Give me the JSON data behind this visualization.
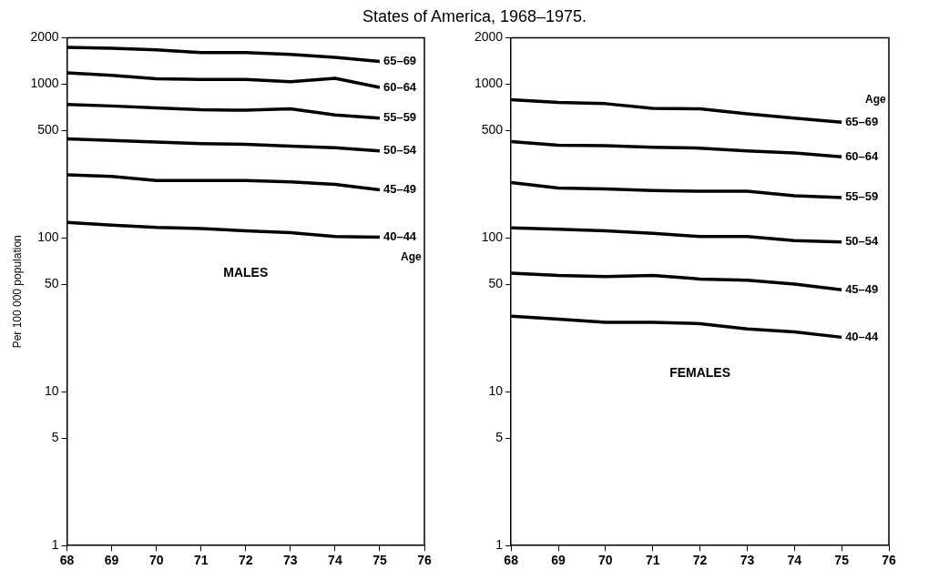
{
  "chart_data": [
    {
      "type": "line",
      "title": "States of America, 1968–1975.",
      "ylabel": "Per 100 000 population",
      "legend_title": "Age",
      "annotations": [
        "MALES"
      ],
      "legend": false,
      "log": true,
      "x": [
        68,
        69,
        70,
        71,
        72,
        73,
        74,
        75
      ],
      "xlim": [
        68,
        76
      ],
      "xticks": [
        68,
        69,
        70,
        71,
        72,
        73,
        74,
        75,
        76
      ],
      "ylim": [
        1,
        2000
      ],
      "yticks": [
        1,
        5,
        10,
        50,
        100,
        500,
        1000,
        2000
      ],
      "series": [
        {
          "name": "65–69",
          "color": "#000000",
          "values": [
            1730,
            1710,
            1670,
            1600,
            1600,
            1560,
            1490,
            1400
          ]
        },
        {
          "name": "60–64",
          "color": "#000000",
          "values": [
            1180,
            1140,
            1080,
            1070,
            1070,
            1035,
            1090,
            950
          ]
        },
        {
          "name": "55–59",
          "color": "#000000",
          "values": [
            735,
            720,
            700,
            680,
            675,
            690,
            630,
            600
          ]
        },
        {
          "name": "50–54",
          "color": "#000000",
          "values": [
            440,
            430,
            420,
            410,
            405,
            395,
            385,
            367
          ]
        },
        {
          "name": "45–49",
          "color": "#000000",
          "values": [
            257,
            251,
            236,
            236,
            236,
            231,
            223,
            205
          ]
        },
        {
          "name": "40–44",
          "color": "#000000",
          "values": [
            126,
            121,
            117,
            115,
            111,
            108,
            102,
            101
          ]
        }
      ]
    },
    {
      "type": "line",
      "legend_title": "Age",
      "annotations": [
        "FEMALES"
      ],
      "legend": false,
      "log": true,
      "x": [
        68,
        69,
        70,
        71,
        72,
        73,
        74,
        75
      ],
      "xlim": [
        68,
        76
      ],
      "xticks": [
        68,
        69,
        70,
        71,
        72,
        73,
        74,
        75,
        76
      ],
      "ylim": [
        1,
        2000
      ],
      "yticks": [
        1,
        5,
        10,
        50,
        100,
        500,
        1000,
        2000
      ],
      "series": [
        {
          "name": "65–69",
          "color": "#000000",
          "values": [
            790,
            760,
            745,
            695,
            690,
            640,
            600,
            565
          ]
        },
        {
          "name": "60–64",
          "color": "#000000",
          "values": [
            423,
            400,
            397,
            388,
            383,
            368,
            356,
            336
          ]
        },
        {
          "name": "55–59",
          "color": "#000000",
          "values": [
            229,
            211,
            208,
            203,
            201,
            201,
            188,
            183
          ]
        },
        {
          "name": "50–54",
          "color": "#000000",
          "values": [
            116,
            114,
            111,
            107,
            102,
            102,
            96,
            94
          ]
        },
        {
          "name": "45–49",
          "color": "#000000",
          "values": [
            59,
            57,
            56,
            57,
            54,
            53,
            50,
            46
          ]
        },
        {
          "name": "40–44",
          "color": "#000000",
          "values": [
            31,
            29.6,
            28.3,
            28.3,
            27.7,
            25.6,
            24.5,
            22.6
          ]
        }
      ]
    }
  ]
}
